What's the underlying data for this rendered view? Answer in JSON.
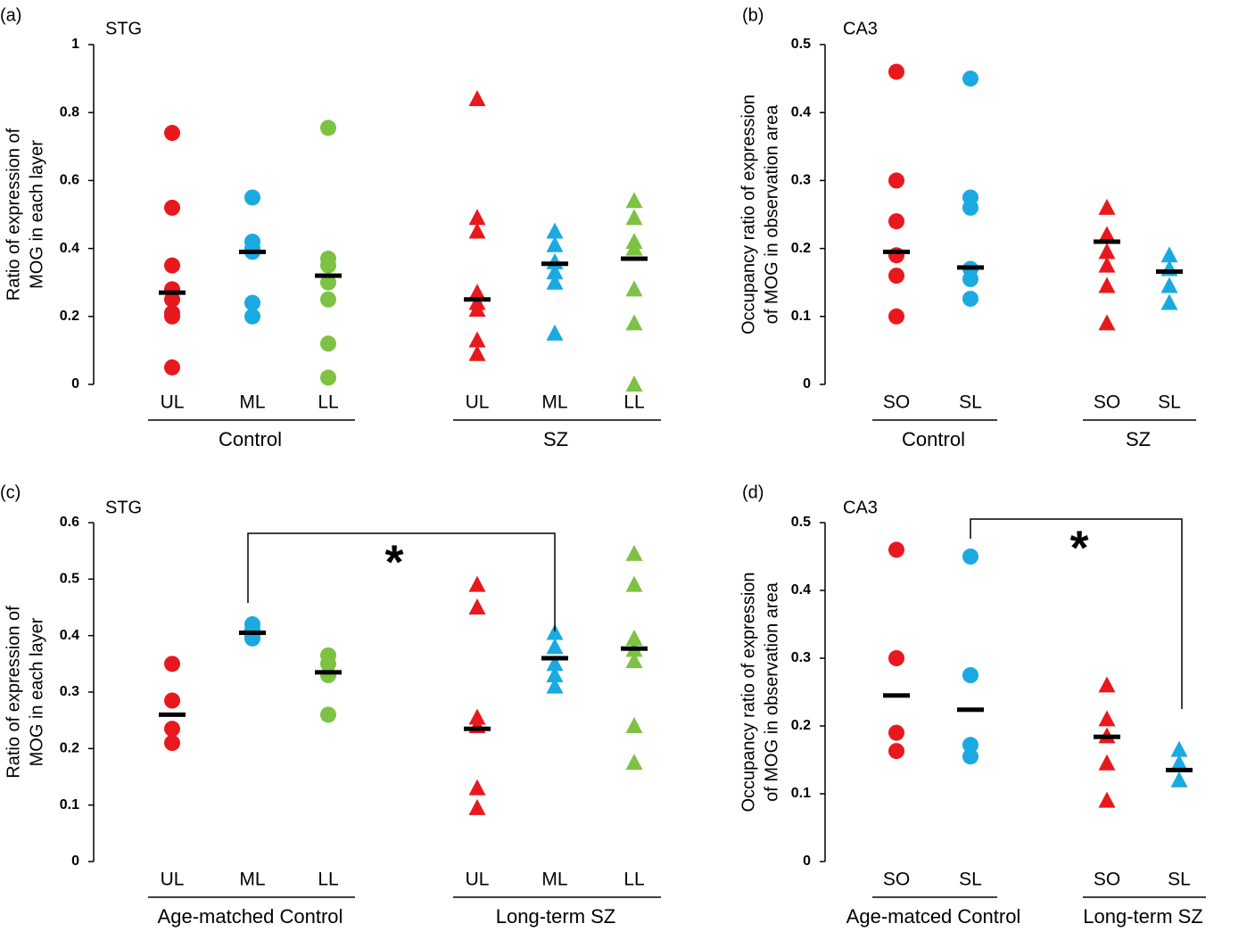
{
  "chart_data": [
    {
      "type": "dot",
      "panel": "(a)",
      "title": "STG",
      "ylabel": [
        "Ratio of expression of",
        "MOG in  each layer"
      ],
      "ylim": [
        0,
        1
      ],
      "yticks": [
        0,
        0.2,
        0.4,
        0.6,
        0.8,
        1
      ],
      "groups": [
        {
          "name": "Control",
          "marker": "circle",
          "columns": [
            {
              "name": "UL",
              "color": "#e8191e",
              "values": [
                0.74,
                0.52,
                0.35,
                0.28,
                0.25,
                0.21,
                0.2,
                0.05
              ],
              "mean": 0.27
            },
            {
              "name": "ML",
              "color": "#1ba9e1",
              "values": [
                0.55,
                0.42,
                0.4,
                0.39,
                0.24,
                0.2
              ],
              "mean": 0.39
            },
            {
              "name": "LL",
              "color": "#7dc242",
              "values": [
                0.755,
                0.37,
                0.35,
                0.3,
                0.25,
                0.12,
                0.02
              ],
              "mean": 0.32
            }
          ]
        },
        {
          "name": "SZ",
          "marker": "triangle",
          "columns": [
            {
              "name": "UL",
              "color": "#e8191e",
              "values": [
                0.84,
                0.49,
                0.45,
                0.27,
                0.24,
                0.22,
                0.13,
                0.09
              ],
              "mean": 0.25
            },
            {
              "name": "ML",
              "color": "#1ba9e1",
              "values": [
                0.45,
                0.41,
                0.36,
                0.33,
                0.3,
                0.15
              ],
              "mean": 0.355
            },
            {
              "name": "LL",
              "color": "#7dc242",
              "values": [
                0.54,
                0.49,
                0.42,
                0.4,
                0.28,
                0.18,
                0.0
              ],
              "mean": 0.37
            }
          ]
        }
      ]
    },
    {
      "type": "dot",
      "panel": "(b)",
      "title": "CA3",
      "ylabel": [
        "Occupancy ratio of expression",
        "of MOG in observation area"
      ],
      "ylim": [
        0,
        0.5
      ],
      "yticks": [
        0,
        0.1,
        0.2,
        0.3,
        0.4,
        0.5
      ],
      "groups": [
        {
          "name": "Control",
          "marker": "circle",
          "columns": [
            {
              "name": "SO",
              "color": "#e8191e",
              "values": [
                0.46,
                0.3,
                0.24,
                0.19,
                0.16,
                0.1
              ],
              "mean": 0.195
            },
            {
              "name": "SL",
              "color": "#1ba9e1",
              "values": [
                0.45,
                0.275,
                0.26,
                0.17,
                0.155,
                0.126
              ],
              "mean": 0.172
            }
          ]
        },
        {
          "name": "SZ",
          "marker": "triangle",
          "columns": [
            {
              "name": "SO",
              "color": "#e8191e",
              "values": [
                0.26,
                0.22,
                0.195,
                0.175,
                0.145,
                0.09
              ],
              "mean": 0.21
            },
            {
              "name": "SL",
              "color": "#1ba9e1",
              "values": [
                0.19,
                0.17,
                0.145,
                0.12
              ],
              "mean": 0.166
            }
          ]
        }
      ]
    },
    {
      "type": "dot",
      "panel": "(c)",
      "title": "STG",
      "ylabel": [
        "Ratio of expression of",
        "MOG in  each layer"
      ],
      "ylim": [
        0,
        0.6
      ],
      "yticks": [
        0,
        0.1,
        0.2,
        0.3,
        0.4,
        0.5,
        0.6
      ],
      "significance": "*",
      "groups": [
        {
          "name": "Age-matched Control",
          "marker": "circle",
          "columns": [
            {
              "name": "UL",
              "color": "#e8191e",
              "values": [
                0.35,
                0.285,
                0.235,
                0.21
              ],
              "mean": 0.26
            },
            {
              "name": "ML",
              "color": "#1ba9e1",
              "values": [
                0.42,
                0.41,
                0.4,
                0.395
              ],
              "mean": 0.405
            },
            {
              "name": "LL",
              "color": "#7dc242",
              "values": [
                0.365,
                0.35,
                0.33,
                0.26
              ],
              "mean": 0.335
            }
          ]
        },
        {
          "name": "Long-term SZ",
          "marker": "triangle",
          "columns": [
            {
              "name": "UL",
              "color": "#e8191e",
              "values": [
                0.49,
                0.45,
                0.255,
                0.24,
                0.13,
                0.095
              ],
              "mean": 0.235
            },
            {
              "name": "ML",
              "color": "#1ba9e1",
              "values": [
                0.405,
                0.38,
                0.35,
                0.33,
                0.31
              ],
              "mean": 0.36
            },
            {
              "name": "LL",
              "color": "#7dc242",
              "values": [
                0.545,
                0.49,
                0.395,
                0.375,
                0.355,
                0.24,
                0.175
              ],
              "mean": 0.377
            }
          ]
        }
      ]
    },
    {
      "type": "dot",
      "panel": "(d)",
      "title": "CA3",
      "ylabel": [
        "Occupancy ratio of expression",
        "of MOG in observation area"
      ],
      "ylim": [
        0,
        0.5
      ],
      "yticks": [
        0,
        0.1,
        0.2,
        0.3,
        0.4,
        0.5
      ],
      "significance": "*",
      "groups": [
        {
          "name": "Age-matced Control",
          "marker": "circle",
          "columns": [
            {
              "name": "SO",
              "color": "#e8191e",
              "values": [
                0.46,
                0.3,
                0.19,
                0.163
              ],
              "mean": 0.245
            },
            {
              "name": "SL",
              "color": "#1ba9e1",
              "values": [
                0.45,
                0.275,
                0.172,
                0.155
              ],
              "mean": 0.224
            }
          ]
        },
        {
          "name": "Long-term SZ",
          "marker": "triangle",
          "columns": [
            {
              "name": "SO",
              "color": "#e8191e",
              "values": [
                0.26,
                0.21,
                0.185,
                0.145,
                0.09
              ],
              "mean": 0.184
            },
            {
              "name": "SL",
              "color": "#1ba9e1",
              "values": [
                0.165,
                0.145,
                0.12
              ],
              "mean": 0.135
            }
          ]
        }
      ]
    }
  ]
}
